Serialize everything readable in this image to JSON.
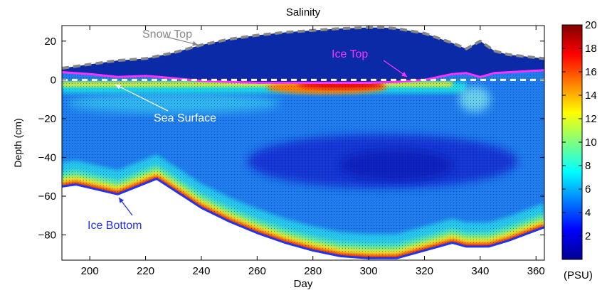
{
  "chart_data": {
    "type": "heatmap",
    "title": "Salinity",
    "xlabel": "Day",
    "ylabel": "Depth (cm)",
    "xlim": [
      190,
      363
    ],
    "ylim": [
      -93,
      28
    ],
    "x_ticks": [
      200,
      220,
      240,
      260,
      280,
      300,
      320,
      340,
      360
    ],
    "y_ticks": [
      20,
      0,
      -20,
      -40,
      -60,
      -80
    ],
    "x_tick_labels": [
      "200",
      "220",
      "240",
      "260",
      "280",
      "300",
      "320",
      "340",
      "360"
    ],
    "y_tick_labels": [
      "20",
      "0",
      "−20",
      "−40",
      "−60",
      "−80"
    ],
    "colorbar": {
      "label": "(PSU)",
      "min": 0,
      "max": 20,
      "ticks": [
        2,
        4,
        6,
        8,
        10,
        12,
        14,
        16,
        18,
        20
      ],
      "tick_labels": [
        "2",
        "4",
        "6",
        "8",
        "10",
        "12",
        "14",
        "16",
        "18",
        "20"
      ],
      "colormap": "jet"
    },
    "grid": false,
    "series": [
      {
        "name": "Snow Top",
        "color": "#888888",
        "style": "dashed",
        "x": [
          190,
          200,
          210,
          220,
          230,
          240,
          250,
          260,
          270,
          280,
          290,
          300,
          305,
          310,
          320,
          330,
          335,
          340,
          345,
          350,
          363
        ],
        "y": [
          6,
          8,
          10,
          11,
          14,
          18,
          21,
          23,
          24.5,
          25.5,
          26.5,
          27,
          27,
          26.5,
          24,
          19,
          16,
          20,
          15,
          13,
          11
        ]
      },
      {
        "name": "Ice Top",
        "color": "#ff33ff",
        "style": "solid",
        "x": [
          190,
          200,
          210,
          220,
          225,
          240,
          260,
          280,
          300,
          310,
          320,
          330,
          335,
          340,
          345,
          363
        ],
        "y": [
          4,
          3,
          1.5,
          2,
          1.5,
          -0.5,
          -1.5,
          -1.5,
          -1.5,
          -1,
          0,
          3,
          3.5,
          1.5,
          3.5,
          5
        ]
      },
      {
        "name": "Sea Surface",
        "color": "#ffffff",
        "style": "dashed",
        "x": [
          190,
          363
        ],
        "y": [
          0,
          0
        ]
      },
      {
        "name": "Ice Bottom",
        "color": "#2233ee",
        "style": "solid",
        "x": [
          190,
          195,
          210,
          224,
          240,
          250,
          260,
          270,
          280,
          290,
          300,
          310,
          320,
          330,
          335,
          343,
          350,
          363
        ],
        "y": [
          -55,
          -54,
          -59,
          -51,
          -66,
          -73,
          -79,
          -84,
          -88,
          -91,
          -92,
          -92,
          -88,
          -84,
          -86,
          -86,
          -83,
          -76
        ]
      }
    ],
    "annotations": [
      {
        "text": "Snow Top",
        "color": "#888888"
      },
      {
        "text": "Ice Top",
        "color": "#ff33ff"
      },
      {
        "text": "Sea Surface",
        "color": "#ffffff"
      },
      {
        "text": "Ice Bottom",
        "color": "#2233ee"
      }
    ]
  }
}
